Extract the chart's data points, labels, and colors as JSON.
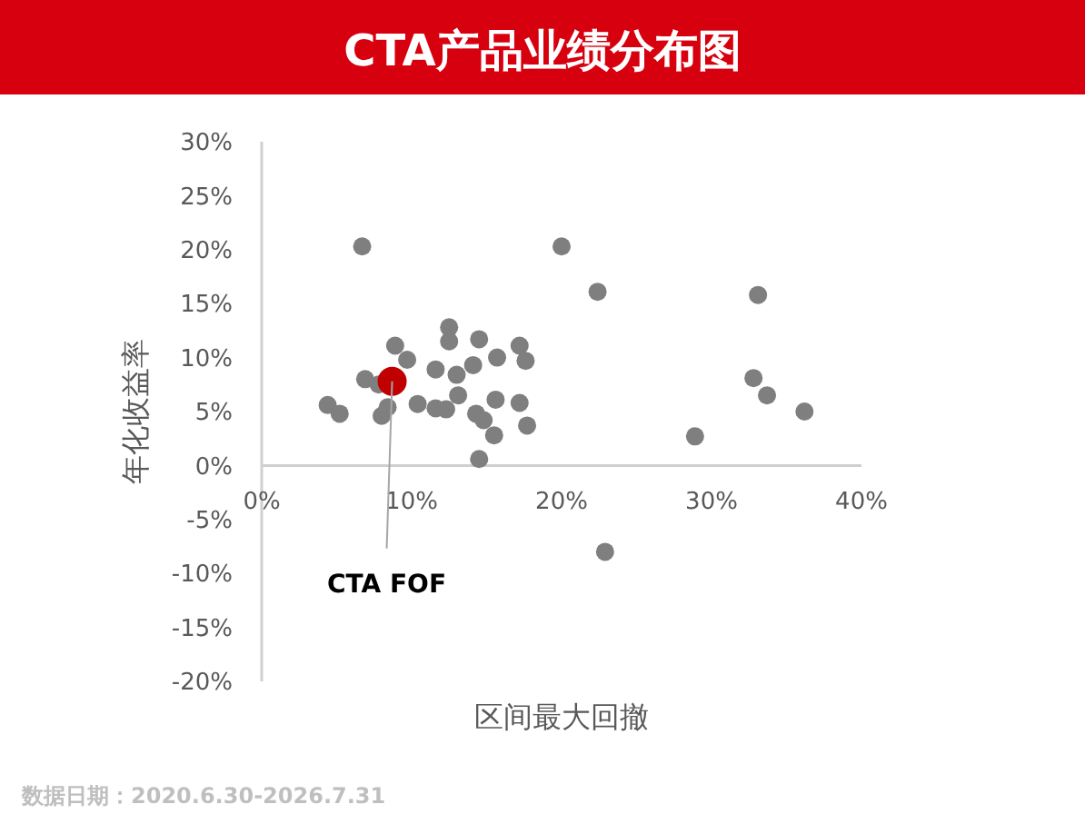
{
  "chart_data": {
    "type": "scatter",
    "title": "CTA产品业绩分布图",
    "xlabel": "区间最大回撤",
    "ylabel": "年化收益率",
    "annotations": [
      "数据日期：2020.6.30-2026.7.31"
    ],
    "xlim": [
      0,
      40
    ],
    "xticks": [
      {
        "value": 0,
        "label": "0%"
      },
      {
        "value": 10,
        "label": "10%"
      },
      {
        "value": 20,
        "label": "20%"
      },
      {
        "value": 30,
        "label": "30%"
      },
      {
        "value": 40,
        "label": "40%"
      }
    ],
    "ylim": [
      -20,
      30
    ],
    "yticks": [
      {
        "value": -20,
        "label": "-20%"
      },
      {
        "value": -15,
        "label": "-15%"
      },
      {
        "value": -10,
        "label": "-10%"
      },
      {
        "value": -5,
        "label": "-5%"
      },
      {
        "value": 0,
        "label": "0%"
      },
      {
        "value": 5,
        "label": "5%"
      },
      {
        "value": 10,
        "label": "10%"
      },
      {
        "value": 15,
        "label": "15%"
      },
      {
        "value": 20,
        "label": "20%"
      },
      {
        "value": 25,
        "label": "25%"
      },
      {
        "value": 30,
        "label": "30%"
      }
    ],
    "grid": false,
    "marker": "circle",
    "series": [
      {
        "color": "#7f7f7f",
        "x": [
          6.7,
          8.9,
          9.7,
          6.9,
          7.8,
          4.4,
          5.2,
          8.0,
          8.4,
          10.4,
          11.6,
          12.3,
          11.6,
          12.5,
          12.5,
          13.0,
          13.1,
          14.1,
          14.5,
          15.7,
          14.3,
          14.8,
          15.5,
          14.5,
          15.6,
          17.2,
          17.6,
          17.2,
          17.7,
          20.0,
          22.4,
          22.9,
          28.9,
          33.1,
          32.8,
          33.7,
          36.2
        ],
        "values": [
          20.3,
          11.1,
          9.8,
          8.0,
          7.5,
          5.6,
          4.8,
          4.6,
          5.4,
          5.7,
          5.3,
          5.2,
          8.9,
          12.8,
          11.5,
          8.4,
          6.5,
          9.3,
          11.7,
          10.0,
          4.8,
          4.2,
          2.8,
          0.6,
          6.1,
          11.1,
          9.7,
          5.8,
          3.7,
          20.3,
          16.1,
          -8.0,
          2.7,
          15.8,
          8.1,
          6.5,
          5.0
        ]
      },
      {
        "name": "CTA FOF",
        "color": "#c00000",
        "x": [
          8.7
        ],
        "values": [
          7.8
        ]
      }
    ]
  }
}
